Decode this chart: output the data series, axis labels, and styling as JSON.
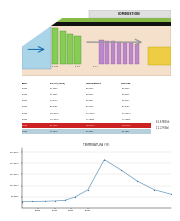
{
  "title_top": "COMBUSTION",
  "note1": "62.6 MWth",
  "note2": "12.2 MWel",
  "chart_title": "TEMPERATURA (°K)",
  "bg_color": "#ffffff",
  "line_color": "#6699bb",
  "marker_color": "#4477aa",
  "diagram_bg": "#f5e0cc",
  "diagram_black_band": "#111111",
  "diagram_green_top": "#88bb44",
  "diagram_blue_panel": "#aad4e8",
  "diagram_green_cols": "#88cc55",
  "diagram_green_col_edge": "#449933",
  "diagram_purple_cols": "#bb88cc",
  "diagram_yellow": "#eecc44",
  "diagram_orange_label": "#cc8844",
  "diagram_grey_arrow": "#aaaaaa",
  "table_rows": [
    [
      "1.0000",
      "101.3250",
      "288.1500",
      "288.1500"
    ],
    [
      "1.0000",
      "101.3250",
      "288.2300",
      "288.2300"
    ],
    [
      "1.0000",
      "250.5710",
      "810.3547",
      "810.3547"
    ],
    [
      "1.0000",
      "808.6785",
      "803.5763",
      "803.5763"
    ],
    [
      "1.0000",
      "2489.5248",
      "2170.2500",
      "2170.2500"
    ],
    [
      "1.0000",
      "1770.9948",
      "1704.8881",
      "1704.8881"
    ],
    [
      "1.0000",
      "867.7935",
      "1994.3750",
      "1994.3750"
    ],
    [
      "1.0000",
      "102.7875",
      "620.7851",
      "620.7851"
    ]
  ],
  "row_red_idx": 6,
  "row_blue_idx": 7,
  "x_plot": [
    0,
    0.3,
    0.7,
    1.0,
    1.3,
    1.6,
    2.0,
    2.5,
    3.0,
    3.5,
    4.0,
    4.5
  ],
  "y_plot": [
    288,
    292,
    300,
    312,
    340,
    480,
    810,
    2170,
    1705,
    1200,
    820,
    620
  ],
  "x_ticks": [
    0.5,
    1.0,
    1.5,
    2.0
  ],
  "x_tick_labels": [
    "0.5000",
    "1.0000",
    "1.5000",
    "2.0000"
  ],
  "y_ticks": [
    500,
    1000,
    1500,
    2000,
    2500
  ],
  "y_tick_labels": [
    "500.0000",
    "1000.0000",
    "1500.0000",
    "2000.0000",
    "2500.0000"
  ],
  "y_lim": [
    0,
    2700
  ],
  "x_lim": [
    0,
    4.5
  ]
}
